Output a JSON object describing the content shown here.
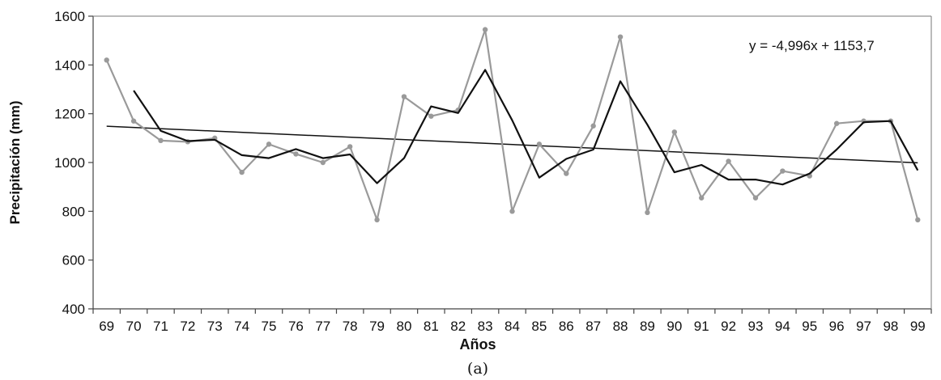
{
  "chart_data": {
    "type": "line",
    "caption": "(a)",
    "xlabel": "Años",
    "ylabel": "Precipitación (mm)",
    "ylim": [
      400,
      1600
    ],
    "yticks": [
      400,
      600,
      800,
      1000,
      1200,
      1400,
      1600
    ],
    "categories": [
      "69",
      "70",
      "71",
      "72",
      "73",
      "74",
      "75",
      "76",
      "77",
      "78",
      "79",
      "80",
      "81",
      "82",
      "83",
      "84",
      "85",
      "86",
      "87",
      "88",
      "89",
      "90",
      "91",
      "92",
      "93",
      "94",
      "95",
      "96",
      "97",
      "98",
      "99"
    ],
    "grid": false,
    "trendline_equation": "y = -4,996x + 1153,7",
    "colors": {
      "observed": "#9a9a9a",
      "moving_average": "#111111",
      "trend": "#111111"
    },
    "series": [
      {
        "key": "observed",
        "values": [
          1420,
          1170,
          1090,
          1085,
          1100,
          960,
          1075,
          1035,
          1000,
          1065,
          765,
          1270,
          1190,
          1215,
          1545,
          800,
          1075,
          955,
          1150,
          1515,
          795,
          1125,
          855,
          1005,
          855,
          965,
          945,
          1160,
          1170,
          1170,
          765
        ]
      },
      {
        "key": "moving_average",
        "values": [
          null,
          1295,
          1130,
          1088,
          1093,
          1030,
          1018,
          1055,
          1018,
          1033,
          915,
          1018,
          1230,
          1203,
          1380,
          1173,
          938,
          1015,
          1053,
          1333,
          1155,
          960,
          990,
          930,
          930,
          910,
          955,
          1053,
          1165,
          1170,
          968
        ]
      },
      {
        "key": "trend",
        "values": [
          1148.7,
          1143.7,
          1138.7,
          1133.7,
          1128.7,
          1123.7,
          1118.7,
          1113.7,
          1108.7,
          1103.7,
          1098.7,
          1093.8,
          1088.8,
          1083.8,
          1078.8,
          1073.8,
          1068.8,
          1063.8,
          1058.8,
          1053.8,
          1048.8,
          1043.8,
          1038.8,
          1033.8,
          1028.8,
          1023.8,
          1018.8,
          1013.8,
          1008.8,
          1003.8,
          998.8
        ]
      }
    ]
  }
}
